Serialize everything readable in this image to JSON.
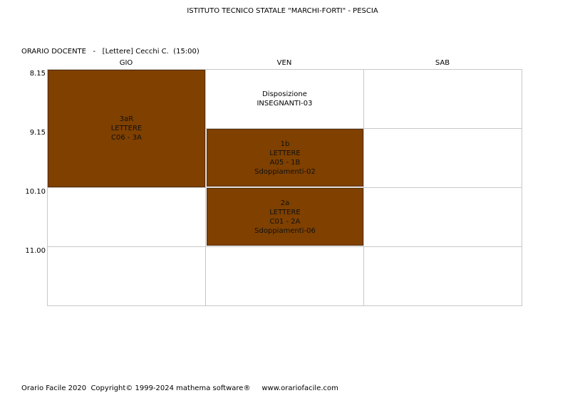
{
  "school": "ISTITUTO TECNICO STATALE \"MARCHI-FORTI\" - PESCIA",
  "teacher_line": "ORARIO DOCENTE   -   [Lettere] Cecchi C.  (15:00)",
  "days": [
    "GIO",
    "VEN",
    "SAB"
  ],
  "times": [
    "8.15",
    "9.15",
    "10.10",
    "11.00"
  ],
  "cells": {
    "gio_3ar": {
      "lines": [
        "3aR",
        "LETTERE",
        "C06 - 3A"
      ]
    },
    "ven_disposizione": {
      "lines": [
        "Disposizione",
        "INSEGNANTI-03"
      ]
    },
    "ven_1b": {
      "lines": [
        "1b",
        "LETTERE",
        "A05 - 1B",
        "Sdoppiamenti-02"
      ]
    },
    "ven_2a": {
      "lines": [
        "2a",
        "LETTERE",
        "C01 - 2A",
        "Sdoppiamenti-06"
      ]
    }
  },
  "colors": {
    "lesson_bg": "#7f4000",
    "grid": "#c8c8c8"
  },
  "footer": "Orario Facile 2020  Copyright© 1999-2024 mathema software®     www.orariofacile.com"
}
